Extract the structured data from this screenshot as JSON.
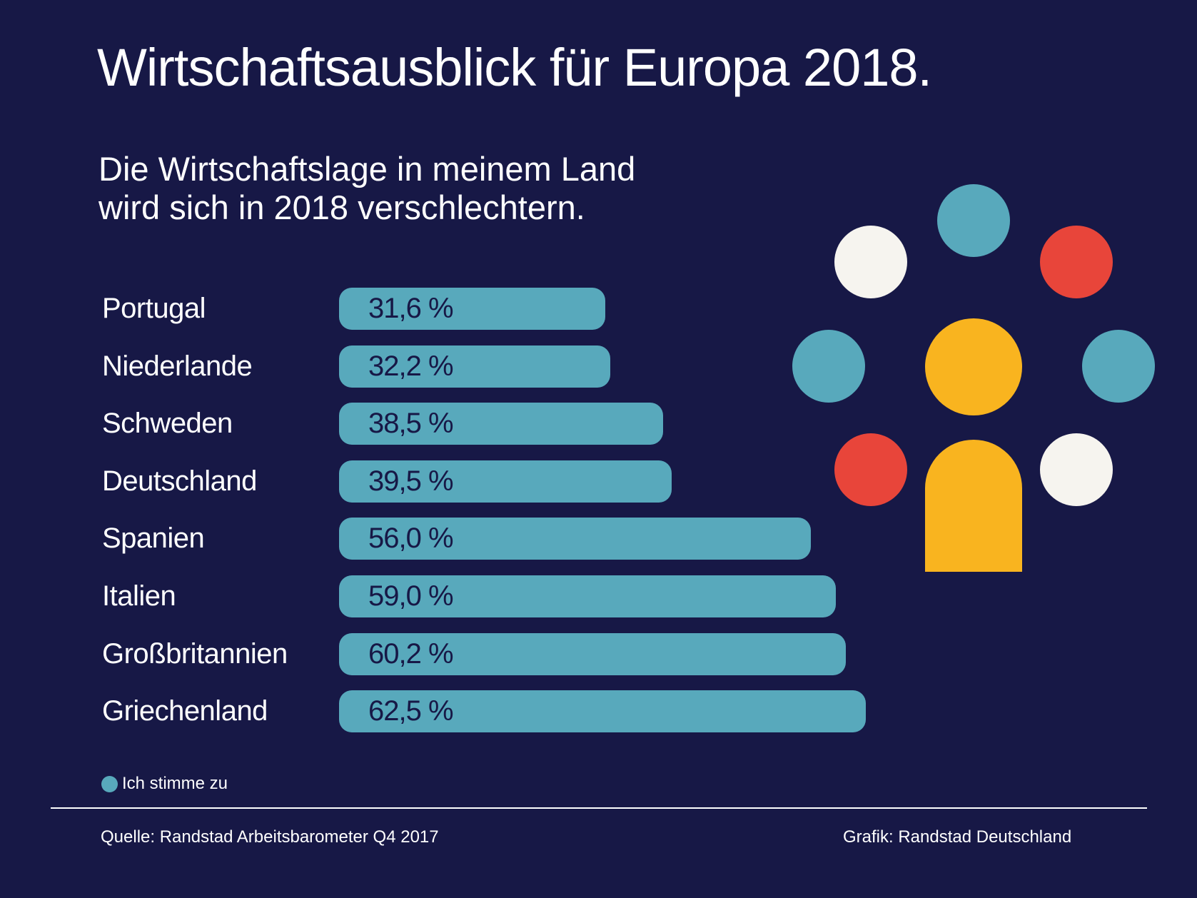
{
  "title": "Wirtschaftsausblick für Europa 2018.",
  "subtitle": "Die Wirtschaftslage in meinem Land\nwird sich in 2018 verschlechtern.",
  "legend": {
    "label": "Ich stimme zu",
    "color": "#58a9bc"
  },
  "footer": {
    "source": "Quelle: Randstad Arbeitsbarometer Q4 2017",
    "credit": "Grafik: Randstad Deutschland"
  },
  "colors": {
    "background": "#171846",
    "bar": "#58a9bc",
    "yellow": "#f9b41f",
    "red": "#e8453a",
    "white": "#f6f4ef"
  },
  "chart_data": {
    "type": "bar",
    "orientation": "horizontal",
    "title": "Die Wirtschaftslage in meinem Land wird sich in 2018 verschlechtern.",
    "categories": [
      "Portugal",
      "Niederlande",
      "Schweden",
      "Deutschland",
      "Spanien",
      "Italien",
      "Großbritannien",
      "Griechenland"
    ],
    "values": [
      31.6,
      32.2,
      38.5,
      39.5,
      56.0,
      59.0,
      60.2,
      62.5
    ],
    "value_labels": [
      "31,6 %",
      "32,2 %",
      "38,5 %",
      "39,5 %",
      "56,0 %",
      "59,0 %",
      "60,2 %",
      "62,5 %"
    ],
    "series": [
      {
        "name": "Ich stimme zu",
        "values": [
          31.6,
          32.2,
          38.5,
          39.5,
          56.0,
          59.0,
          60.2,
          62.5
        ]
      }
    ],
    "xlabel": "",
    "ylabel": "",
    "unit": "%",
    "grid": false,
    "legend_position": "bottom-left"
  }
}
